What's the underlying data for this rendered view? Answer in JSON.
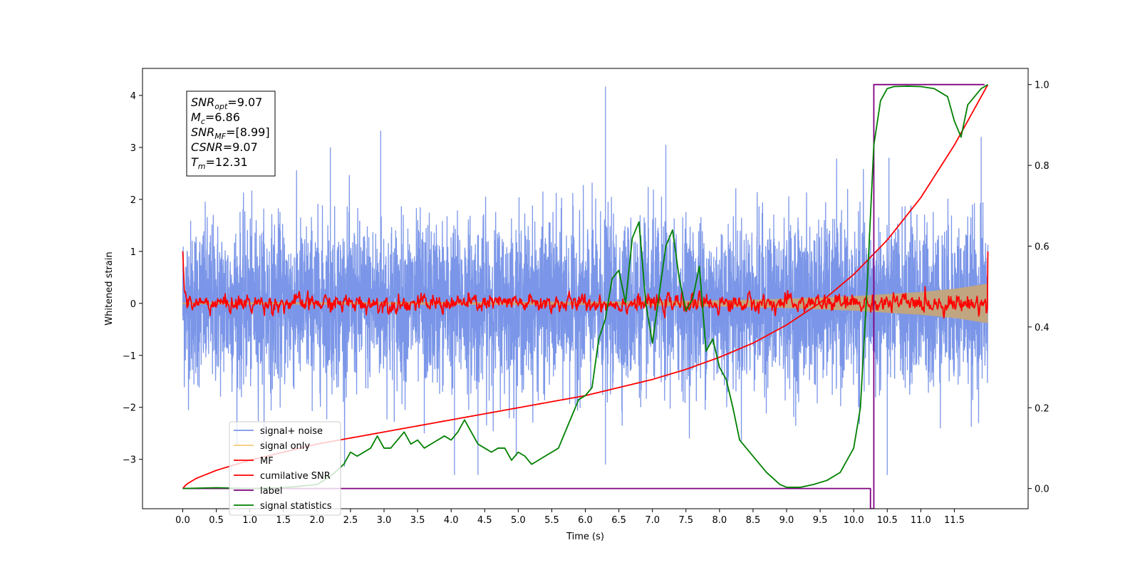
{
  "chart_data": {
    "type": "line",
    "xlabel": "Time (s)",
    "ylabel_left": "Whitened strain",
    "ylabel_right": "",
    "xlim": [
      -0.6,
      12.6
    ],
    "ylim_left": [
      -3.95,
      4.52
    ],
    "ylim_right": [
      -0.05,
      1.04
    ],
    "x_ticks": [
      "0.0",
      "0.5",
      "1.0",
      "1.5",
      "2.0",
      "2.5",
      "3.0",
      "3.5",
      "4.0",
      "4.5",
      "5.0",
      "5.5",
      "6.0",
      "6.5",
      "7.0",
      "7.5",
      "8.0",
      "8.5",
      "9.0",
      "9.5",
      "10.0",
      "10.5",
      "11.0",
      "11.5"
    ],
    "x_tick_values": [
      0,
      0.5,
      1,
      1.5,
      2,
      2.5,
      3,
      3.5,
      4,
      4.5,
      5,
      5.5,
      6,
      6.5,
      7,
      7.5,
      8,
      8.5,
      9,
      9.5,
      10,
      10.5,
      11,
      11.5
    ],
    "y_left_ticks": [
      -3,
      -2,
      -1,
      0,
      1,
      2,
      3,
      4
    ],
    "y_left_tick_labels": [
      "−3",
      "−2",
      "−1",
      "0",
      "1",
      "2",
      "3",
      "4"
    ],
    "y_right_ticks": [
      0.0,
      0.2,
      0.4,
      0.6,
      0.8,
      1.0
    ],
    "y_right_tick_labels": [
      "0.0",
      "0.2",
      "0.4",
      "0.6",
      "0.8",
      "1.0"
    ],
    "grid": false,
    "legend_position": "lower-left",
    "annotation": {
      "lines": [
        {
          "sym": "SNR",
          "sub": "opt",
          "val": "=9.07"
        },
        {
          "sym": "M",
          "sub": "c",
          "val": "=6.86"
        },
        {
          "sym": "SNR",
          "sub": "MF",
          "val": "=[8.99]"
        },
        {
          "sym": "CSNR",
          "sub": "",
          "val": "=9.07"
        },
        {
          "sym": "T",
          "sub": "m",
          "val": "=12.31"
        }
      ]
    },
    "series": [
      {
        "name": "signal+ noise",
        "axis": "left",
        "color": "#7b96e8",
        "kind": "noise",
        "x_range": [
          0,
          12
        ],
        "amplitude_typical": 1.3,
        "amplitude_max": 4.17
      },
      {
        "name": "signal only",
        "axis": "left",
        "color": "#f7c97a",
        "kind": "chirp_envelope",
        "x_range": [
          0,
          12
        ],
        "envelope": {
          "x": [
            0,
            6,
            8,
            9,
            10,
            11,
            11.5,
            12
          ],
          "amp": [
            0.02,
            0.03,
            0.06,
            0.09,
            0.14,
            0.22,
            0.28,
            0.38
          ]
        }
      },
      {
        "name": "MF",
        "axis": "left",
        "color": "#ff0000",
        "kind": "mf",
        "x_range": [
          0,
          12
        ],
        "start_value": 1.0,
        "end_value": 1.0,
        "typical": 0.08,
        "max": 0.33
      },
      {
        "name": "cumilative SNR",
        "axis": "right",
        "color": "#ff0000",
        "x": [
          0,
          0.05,
          0.2,
          0.5,
          1,
          1.5,
          2,
          2.5,
          3,
          3.5,
          4,
          4.5,
          5,
          5.5,
          6,
          6.5,
          7,
          7.5,
          8,
          8.5,
          9,
          9.5,
          10,
          10.5,
          11,
          11.5,
          12
        ],
        "y": [
          0.0,
          0.01,
          0.025,
          0.045,
          0.07,
          0.09,
          0.11,
          0.125,
          0.14,
          0.155,
          0.17,
          0.185,
          0.2,
          0.215,
          0.23,
          0.25,
          0.27,
          0.295,
          0.325,
          0.36,
          0.405,
          0.46,
          0.53,
          0.615,
          0.72,
          0.85,
          1.0
        ]
      },
      {
        "name": "label",
        "axis": "right",
        "color": "#800080",
        "x": [
          0,
          10.25,
          10.25,
          10.3,
          10.3,
          11.95
        ],
        "y": [
          0,
          0,
          -0.05,
          -0.05,
          1.0,
          1.0
        ]
      },
      {
        "name": "signal statistics",
        "axis": "right",
        "color": "#008000",
        "x": [
          0,
          0.5,
          1,
          1.5,
          2,
          2.2,
          2.4,
          2.5,
          2.6,
          2.7,
          2.8,
          2.9,
          3.0,
          3.1,
          3.2,
          3.3,
          3.4,
          3.5,
          3.6,
          3.7,
          3.8,
          3.9,
          4.0,
          4.1,
          4.2,
          4.3,
          4.4,
          4.5,
          4.6,
          4.7,
          4.8,
          4.9,
          5.0,
          5.1,
          5.2,
          5.3,
          5.4,
          5.5,
          5.6,
          5.7,
          5.8,
          5.9,
          6.0,
          6.1,
          6.2,
          6.3,
          6.4,
          6.5,
          6.6,
          6.7,
          6.8,
          6.9,
          7.0,
          7.1,
          7.2,
          7.3,
          7.4,
          7.5,
          7.6,
          7.7,
          7.8,
          7.9,
          8.0,
          8.1,
          8.2,
          8.3,
          8.5,
          8.7,
          8.9,
          9.0,
          9.2,
          9.4,
          9.6,
          9.8,
          10.0,
          10.1,
          10.2,
          10.3,
          10.4,
          10.5,
          10.6,
          10.8,
          11.0,
          11.2,
          11.4,
          11.5,
          11.6,
          11.7,
          11.8,
          11.9,
          12.0
        ],
        "y": [
          0.0,
          0.002,
          0.0,
          0.002,
          0.01,
          0.03,
          0.06,
          0.09,
          0.08,
          0.09,
          0.1,
          0.13,
          0.1,
          0.1,
          0.12,
          0.14,
          0.11,
          0.12,
          0.1,
          0.11,
          0.12,
          0.13,
          0.12,
          0.14,
          0.17,
          0.14,
          0.11,
          0.1,
          0.09,
          0.1,
          0.1,
          0.07,
          0.09,
          0.08,
          0.06,
          0.07,
          0.08,
          0.09,
          0.1,
          0.14,
          0.18,
          0.22,
          0.23,
          0.25,
          0.37,
          0.42,
          0.52,
          0.54,
          0.46,
          0.62,
          0.66,
          0.46,
          0.36,
          0.48,
          0.6,
          0.64,
          0.52,
          0.44,
          0.47,
          0.55,
          0.34,
          0.37,
          0.3,
          0.27,
          0.2,
          0.12,
          0.08,
          0.04,
          0.01,
          0.003,
          0.003,
          0.01,
          0.02,
          0.04,
          0.1,
          0.2,
          0.5,
          0.85,
          0.96,
          0.99,
          0.995,
          0.996,
          0.995,
          0.99,
          0.97,
          0.91,
          0.87,
          0.95,
          0.97,
          0.99,
          1.0
        ]
      }
    ]
  }
}
